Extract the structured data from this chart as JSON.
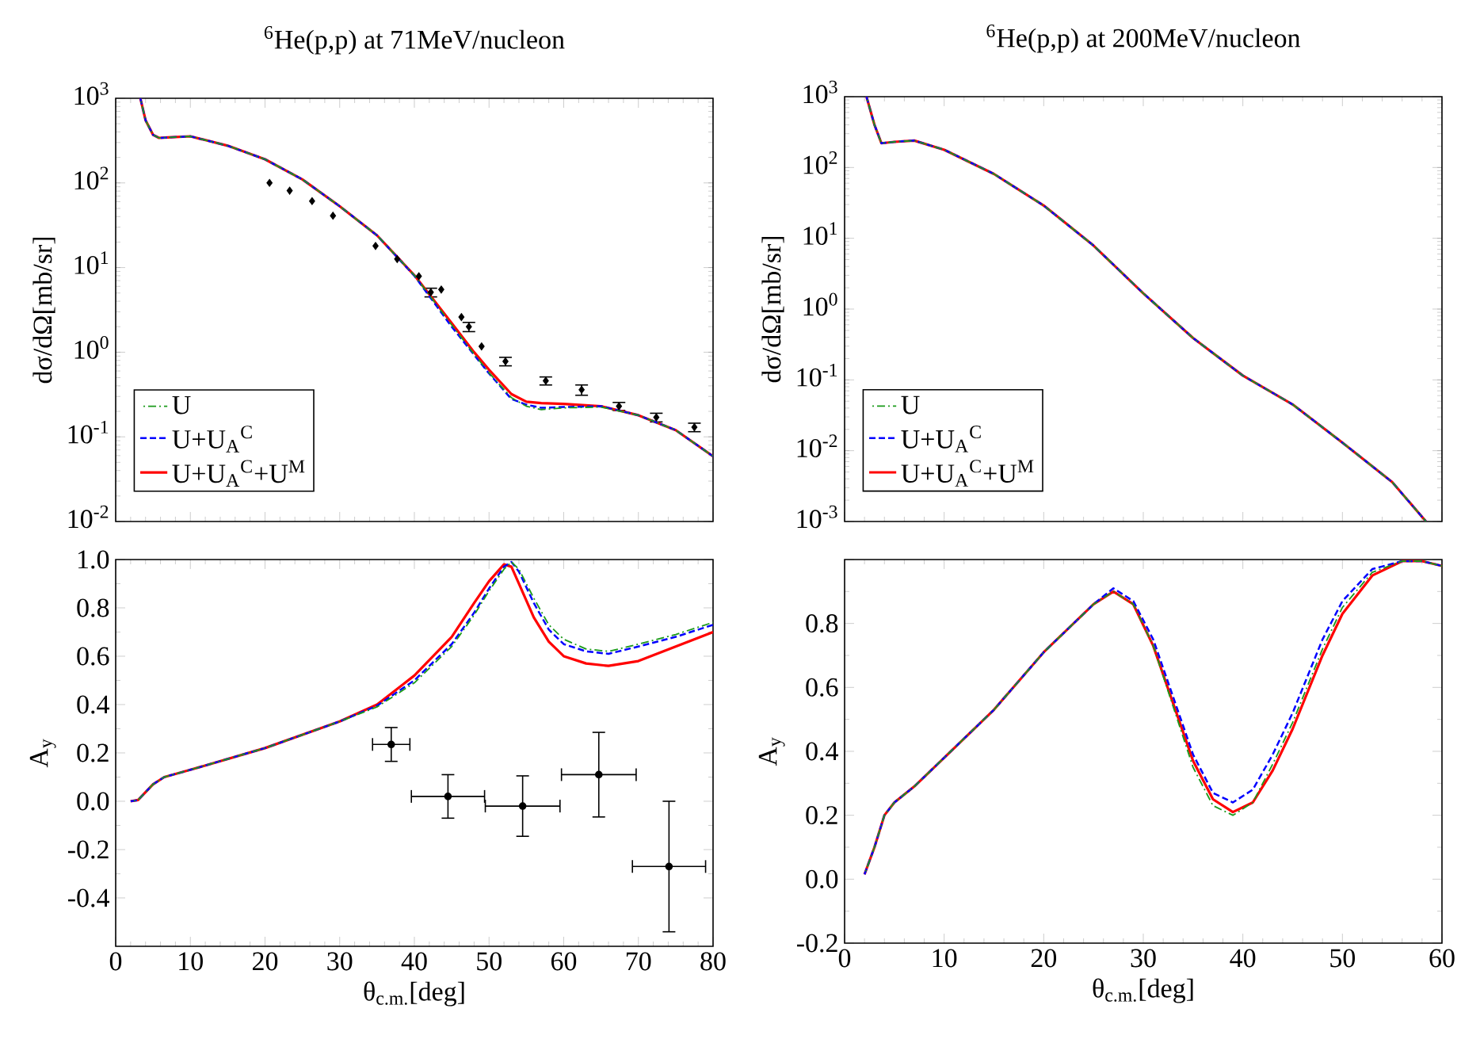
{
  "chart_data": [
    {
      "type": "line",
      "title": "$^{6}$He(p,p) at 71MeV/nucleon",
      "ylabel": "dσ/dΩ[mb/sr]",
      "log": "y",
      "xlim": [
        0,
        80
      ],
      "xticks": [
        0,
        10,
        20,
        30,
        40,
        50,
        60,
        70,
        80
      ],
      "ylim": [
        0.01,
        1000
      ],
      "yticks": [
        {
          "value": 0.01,
          "label": "10$^{-2}$"
        },
        {
          "value": 0.1,
          "label": "10$^{-1}$"
        },
        {
          "value": 1,
          "label": "10$^{0}$"
        },
        {
          "value": 10,
          "label": "10$^{1}$"
        },
        {
          "value": 100,
          "label": "10$^{2}$"
        },
        {
          "value": 1000,
          "label": "10$^{3}$"
        }
      ],
      "tick_labels": "y",
      "legend": "bottom left",
      "series": [
        {
          "name": "U",
          "color": "#1a9a1a",
          "line_style": "dashdot",
          "x": [
            3.3,
            4,
            5,
            5.8,
            7,
            10,
            15,
            20,
            25,
            30,
            35,
            40,
            45,
            48,
            50,
            53,
            55,
            57,
            60,
            65,
            70,
            75,
            80
          ],
          "values": [
            1000,
            550,
            370,
            340,
            345,
            355,
            275,
            190,
            110,
            53,
            24,
            8.1,
            2.1,
            0.95,
            0.57,
            0.29,
            0.23,
            0.21,
            0.22,
            0.225,
            0.18,
            0.12,
            0.059
          ]
        },
        {
          "name": "U+U$_{A}$$^{C}$",
          "color": "#0000ff",
          "line_style": "dashed",
          "x": [
            3.3,
            4,
            5,
            5.8,
            7,
            10,
            15,
            20,
            25,
            30,
            35,
            40,
            45,
            48,
            50,
            53,
            55,
            57,
            60,
            65,
            70,
            75,
            80
          ],
          "values": [
            1000,
            550,
            370,
            340,
            345,
            355,
            275,
            190,
            110,
            53,
            24,
            8.0,
            2.0,
            0.93,
            0.56,
            0.28,
            0.24,
            0.22,
            0.225,
            0.23,
            0.18,
            0.12,
            0.059
          ]
        },
        {
          "name": "U+U$_{A}$$^{C}$+U$^{M}$",
          "color": "#ff0000",
          "line_style": "solid",
          "x": [
            3.3,
            4,
            5,
            5.8,
            7,
            10,
            15,
            20,
            25,
            30,
            35,
            40,
            45,
            48,
            50,
            53,
            55,
            57,
            60,
            65,
            70,
            75,
            80
          ],
          "values": [
            1000,
            550,
            370,
            340,
            345,
            355,
            275,
            190,
            110,
            53,
            24,
            8.1,
            2.2,
            1.0,
            0.62,
            0.32,
            0.26,
            0.25,
            0.245,
            0.23,
            0.18,
            0.12,
            0.059
          ]
        },
        {
          "type": "scatter",
          "color": "#000000",
          "marker": "diamond",
          "x": [
            20.6,
            23.3,
            26.3,
            29.1,
            34.8,
            37.7,
            40.6,
            42.2,
            43.6,
            46.3,
            47.3,
            49.0,
            52.2,
            57.6,
            62.4,
            67.4,
            72.4,
            77.5
          ],
          "values": [
            100,
            81,
            61,
            41,
            18,
            12.6,
            7.9,
            5.1,
            5.5,
            2.6,
            2.0,
            1.17,
            0.78,
            0.46,
            0.36,
            0.23,
            0.17,
            0.13
          ],
          "errors": [
            null,
            null,
            null,
            null,
            null,
            null,
            null,
            0.6,
            null,
            null,
            0.25,
            null,
            0.09,
            0.05,
            0.05,
            0.025,
            0.02,
            0.015
          ]
        }
      ]
    },
    {
      "type": "line",
      "xlabel": "θ$_{c.m.}$[deg]",
      "ylabel": "A$_{y}$",
      "xlim": [
        0,
        80
      ],
      "xticks": [
        0,
        10,
        20,
        30,
        40,
        50,
        60,
        70,
        80
      ],
      "ylim": [
        -0.6,
        1.0
      ],
      "yticks": [
        {
          "value": -0.4,
          "label": "-0.4"
        },
        {
          "value": -0.2,
          "label": "-0.2"
        },
        {
          "value": 0,
          "label": "0.0"
        },
        {
          "value": 0.2,
          "label": "0.2"
        },
        {
          "value": 0.4,
          "label": "0.4"
        },
        {
          "value": 0.6,
          "label": "0.6"
        },
        {
          "value": 0.8,
          "label": "0.8"
        },
        {
          "value": 1.0,
          "label": "1.0"
        }
      ],
      "series": [
        {
          "color": "#1a9a1a",
          "line_style": "dashdot",
          "x": [
            2,
            3,
            5,
            6.5,
            10,
            20,
            30,
            35,
            40,
            45,
            48,
            50,
            52,
            53,
            54,
            56,
            58,
            60,
            63,
            66,
            70,
            75,
            80
          ],
          "values": [
            0,
            0.005,
            0.07,
            0.1,
            0.13,
            0.22,
            0.33,
            0.39,
            0.49,
            0.64,
            0.77,
            0.87,
            0.96,
            0.99,
            0.96,
            0.84,
            0.73,
            0.67,
            0.63,
            0.62,
            0.65,
            0.69,
            0.74
          ]
        },
        {
          "color": "#0000ff",
          "line_style": "dashed",
          "x": [
            2,
            3,
            5,
            6.5,
            10,
            20,
            30,
            35,
            40,
            45,
            48,
            50,
            52,
            53,
            54,
            56,
            58,
            60,
            63,
            66,
            70,
            75,
            80
          ],
          "values": [
            0,
            0.005,
            0.07,
            0.1,
            0.13,
            0.22,
            0.33,
            0.395,
            0.5,
            0.65,
            0.78,
            0.88,
            0.97,
            0.99,
            0.95,
            0.82,
            0.71,
            0.65,
            0.62,
            0.61,
            0.64,
            0.68,
            0.73
          ]
        },
        {
          "color": "#ff0000",
          "line_style": "solid",
          "x": [
            2,
            3,
            5,
            6.5,
            10,
            20,
            30,
            35,
            40,
            45,
            48,
            50,
            52,
            53,
            54,
            56,
            58,
            60,
            63,
            66,
            70,
            75,
            80
          ],
          "values": [
            0,
            0.005,
            0.07,
            0.1,
            0.13,
            0.22,
            0.33,
            0.4,
            0.52,
            0.68,
            0.82,
            0.91,
            0.98,
            0.97,
            0.9,
            0.76,
            0.66,
            0.6,
            0.57,
            0.56,
            0.58,
            0.64,
            0.7
          ]
        },
        {
          "type": "scatter",
          "color": "#000000",
          "marker": "circle",
          "x": [
            36.9,
            44.5,
            54.5,
            64.7,
            74.1
          ],
          "values": [
            0.235,
            0.02,
            -0.02,
            0.11,
            -0.27
          ],
          "errors": [
            0.07,
            0.09,
            0.125,
            0.175,
            0.27
          ],
          "xerrors": [
            2.5,
            4.9,
            5,
            5,
            4.9
          ]
        }
      ]
    },
    {
      "type": "line",
      "title": "$^{6}$He(p,p) at 200MeV/nucleon",
      "ylabel": "dσ/dΩ[mb/sr]",
      "log": "y",
      "xlim": [
        0,
        60
      ],
      "xticks": [
        0,
        10,
        20,
        30,
        40,
        50,
        60
      ],
      "ylim": [
        0.001,
        1000
      ],
      "yticks": [
        {
          "value": 0.001,
          "label": "10$^{-3}$"
        },
        {
          "value": 0.01,
          "label": "10$^{-2}$"
        },
        {
          "value": 0.1,
          "label": "10$^{-1}$"
        },
        {
          "value": 1,
          "label": "10$^{0}$"
        },
        {
          "value": 10,
          "label": "10$^{1}$"
        },
        {
          "value": 100,
          "label": "10$^{2}$"
        },
        {
          "value": 1000,
          "label": "10$^{3}$"
        }
      ],
      "tick_labels": "y",
      "legend": "bottom left",
      "series": [
        {
          "name": "U",
          "color": "#1a9a1a",
          "line_style": "dashdot",
          "x": [
            2.2,
            3,
            3.7,
            5,
            7,
            10,
            15,
            20,
            25,
            30,
            35,
            40,
            45,
            50,
            55,
            58.4
          ],
          "values": [
            1000,
            400,
            220,
            230,
            240,
            178,
            81,
            29,
            7.9,
            1.67,
            0.39,
            0.115,
            0.045,
            0.013,
            0.0036,
            0.001
          ]
        },
        {
          "name": "U+U$_{A}$$^{C}$",
          "color": "#0000ff",
          "line_style": "dashed",
          "x": [
            2.2,
            3,
            3.7,
            5,
            7,
            10,
            15,
            20,
            25,
            30,
            35,
            40,
            45,
            50,
            55,
            58.4
          ],
          "values": [
            1000,
            400,
            220,
            230,
            240,
            178,
            81,
            29,
            7.9,
            1.67,
            0.39,
            0.115,
            0.045,
            0.013,
            0.0036,
            0.001
          ]
        },
        {
          "name": "U+U$_{A}$$^{C}$+U$^{M}$",
          "color": "#ff0000",
          "line_style": "solid",
          "x": [
            2.2,
            3,
            3.7,
            5,
            7,
            10,
            15,
            20,
            25,
            30,
            35,
            40,
            45,
            50,
            55,
            58.4
          ],
          "values": [
            1000,
            400,
            220,
            230,
            240,
            178,
            81,
            29,
            7.9,
            1.67,
            0.39,
            0.115,
            0.045,
            0.013,
            0.0036,
            0.001
          ]
        }
      ]
    },
    {
      "type": "line",
      "xlabel": "θ$_{c.m.}$[deg]",
      "ylabel": "A$_{y}$",
      "xlim": [
        0,
        60
      ],
      "xticks": [
        0,
        10,
        20,
        30,
        40,
        50,
        60
      ],
      "ylim": [
        -0.2,
        1.0
      ],
      "yticks": [
        {
          "value": -0.2,
          "label": "-0.2"
        },
        {
          "value": 0,
          "label": "0.0"
        },
        {
          "value": 0.2,
          "label": "0.2"
        },
        {
          "value": 0.4,
          "label": "0.4"
        },
        {
          "value": 0.6,
          "label": "0.6"
        },
        {
          "value": 0.8,
          "label": "0.8"
        },
        {
          "value": 1.0,
          "label": null
        }
      ],
      "series": [
        {
          "color": "#1a9a1a",
          "line_style": "dashdot",
          "x": [
            2,
            3,
            4,
            5,
            7,
            10,
            15,
            20,
            25,
            27,
            29,
            31,
            33,
            35,
            37,
            39,
            41,
            43,
            45,
            48,
            50,
            53,
            56,
            58,
            60
          ],
          "values": [
            0.015,
            0.1,
            0.2,
            0.24,
            0.29,
            0.38,
            0.53,
            0.71,
            0.86,
            0.9,
            0.86,
            0.73,
            0.54,
            0.35,
            0.23,
            0.2,
            0.24,
            0.36,
            0.49,
            0.72,
            0.85,
            0.96,
            0.995,
            0.995,
            0.98
          ]
        },
        {
          "color": "#0000ff",
          "line_style": "dashed",
          "x": [
            2,
            3,
            4,
            5,
            7,
            10,
            15,
            20,
            25,
            27,
            29,
            31,
            33,
            35,
            37,
            39,
            41,
            43,
            45,
            48,
            50,
            53,
            56,
            58,
            60
          ],
          "values": [
            0.015,
            0.1,
            0.2,
            0.24,
            0.29,
            0.38,
            0.53,
            0.71,
            0.86,
            0.91,
            0.87,
            0.75,
            0.57,
            0.39,
            0.27,
            0.24,
            0.28,
            0.39,
            0.52,
            0.75,
            0.87,
            0.97,
            0.995,
            0.995,
            0.98
          ]
        },
        {
          "color": "#ff0000",
          "line_style": "solid",
          "x": [
            2,
            3,
            4,
            5,
            7,
            10,
            15,
            20,
            25,
            27,
            29,
            31,
            33,
            35,
            37,
            39,
            41,
            43,
            45,
            48,
            50,
            53,
            56,
            58,
            60
          ],
          "values": [
            0.015,
            0.1,
            0.2,
            0.24,
            0.29,
            0.38,
            0.53,
            0.71,
            0.86,
            0.9,
            0.86,
            0.73,
            0.55,
            0.37,
            0.25,
            0.21,
            0.24,
            0.34,
            0.47,
            0.7,
            0.83,
            0.95,
            0.995,
            0.995,
            0.98
          ]
        }
      ]
    }
  ]
}
